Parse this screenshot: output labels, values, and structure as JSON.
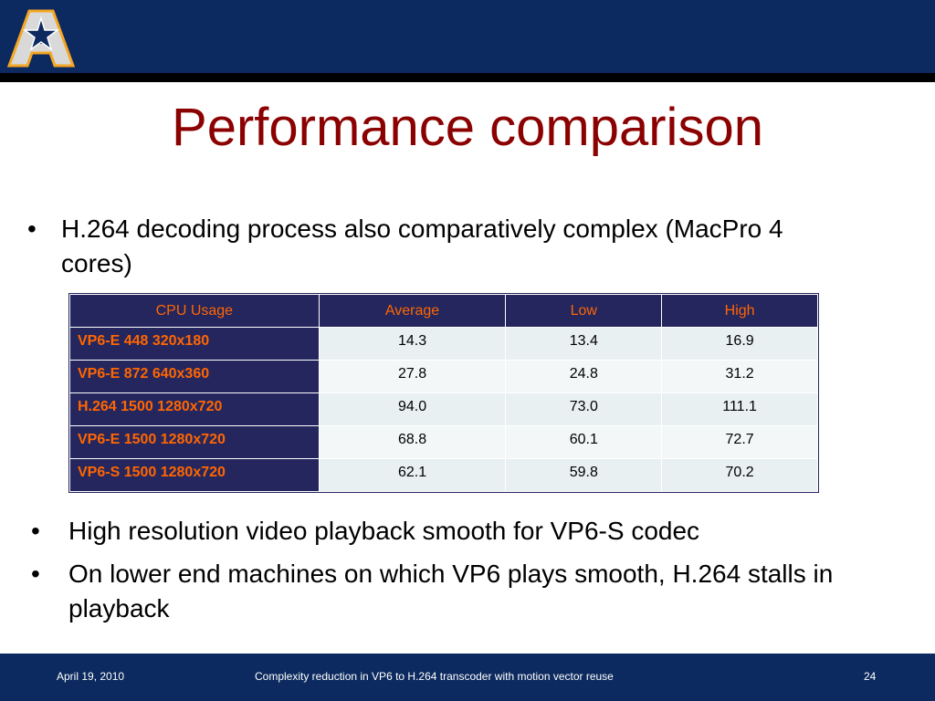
{
  "slide": {
    "title": "Performance comparison",
    "bullet_top": "H.264 decoding process also comparatively complex (MacPro 4 cores)",
    "bullet_char": "•",
    "bottom_bullets": [
      "High resolution video playback smooth for VP6-S codec",
      "On lower end machines on which VP6 plays smooth, H.264 stalls in playback"
    ]
  },
  "table": {
    "headers": [
      "CPU Usage",
      "Average",
      "Low",
      "High"
    ],
    "rows": [
      {
        "label": "VP6-E 448 320x180",
        "average": "14.3",
        "low": "13.4",
        "high": "16.9"
      },
      {
        "label": "VP6-E 872 640x360",
        "average": "27.8",
        "low": "24.8",
        "high": "31.2"
      },
      {
        "label": "H.264 1500 1280x720",
        "average": "94.0",
        "low": "73.0",
        "high": "111.1"
      },
      {
        "label": "VP6-E 1500 1280x720",
        "average": "68.8",
        "low": "60.1",
        "high": "72.7"
      },
      {
        "label": "VP6-S 1500 1280x720",
        "average": "62.1",
        "low": "59.8",
        "high": "70.2"
      }
    ]
  },
  "footer": {
    "date": "April 19, 2010",
    "center": "Complexity reduction in VP6 to H.264 transcoder with motion vector  reuse",
    "page": "24"
  },
  "colors": {
    "band": "#0c2a5f",
    "title": "#8b0000",
    "table_header_bg": "#25265e",
    "table_header_text": "#ff6600"
  },
  "icons": {
    "logo": "uta-a-star-logo-icon"
  }
}
